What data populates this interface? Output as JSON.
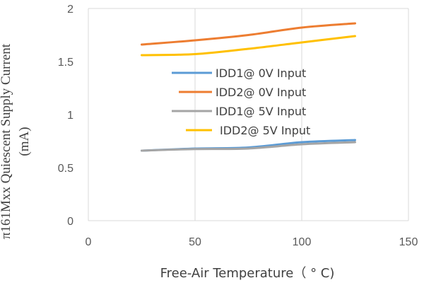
{
  "chart_data": {
    "type": "line",
    "title": "",
    "xlabel": "Free-Air Temperature（ ° C)",
    "ylabel_line1": "π161Mxx Quiescent Supply Current",
    "ylabel_line2": "(mA)",
    "xlim": [
      0,
      150
    ],
    "ylim": [
      0,
      2
    ],
    "xticks": [
      0,
      50,
      100,
      150
    ],
    "yticks": [
      0,
      0.5,
      1,
      1.5,
      2
    ],
    "xtick_labels": [
      "0",
      "50",
      "100",
      "150"
    ],
    "ytick_labels": [
      "0",
      "0.5",
      "1",
      "1.5",
      "2"
    ],
    "grid": "vertical",
    "legend_placement": "center",
    "series": [
      {
        "name": "IDD1@ 0V Input",
        "color": "#5b9bd5",
        "x": [
          25,
          50,
          75,
          100,
          125
        ],
        "y": [
          0.66,
          0.68,
          0.69,
          0.74,
          0.76
        ]
      },
      {
        "name": "IDD2@ 0V Input",
        "color": "#ed7d31",
        "x": [
          25,
          50,
          75,
          100,
          125
        ],
        "y": [
          1.66,
          1.7,
          1.75,
          1.82,
          1.86
        ]
      },
      {
        "name": "IDD1@ 5V Input",
        "color": "#a5a5a5",
        "x": [
          25,
          50,
          75,
          100,
          125
        ],
        "y": [
          0.66,
          0.675,
          0.68,
          0.72,
          0.74
        ]
      },
      {
        "name": "IDD2@ 5V Input",
        "color": "#ffc000",
        "x": [
          25,
          50,
          75,
          100,
          125
        ],
        "y": [
          1.56,
          1.57,
          1.62,
          1.68,
          1.74
        ]
      }
    ]
  }
}
